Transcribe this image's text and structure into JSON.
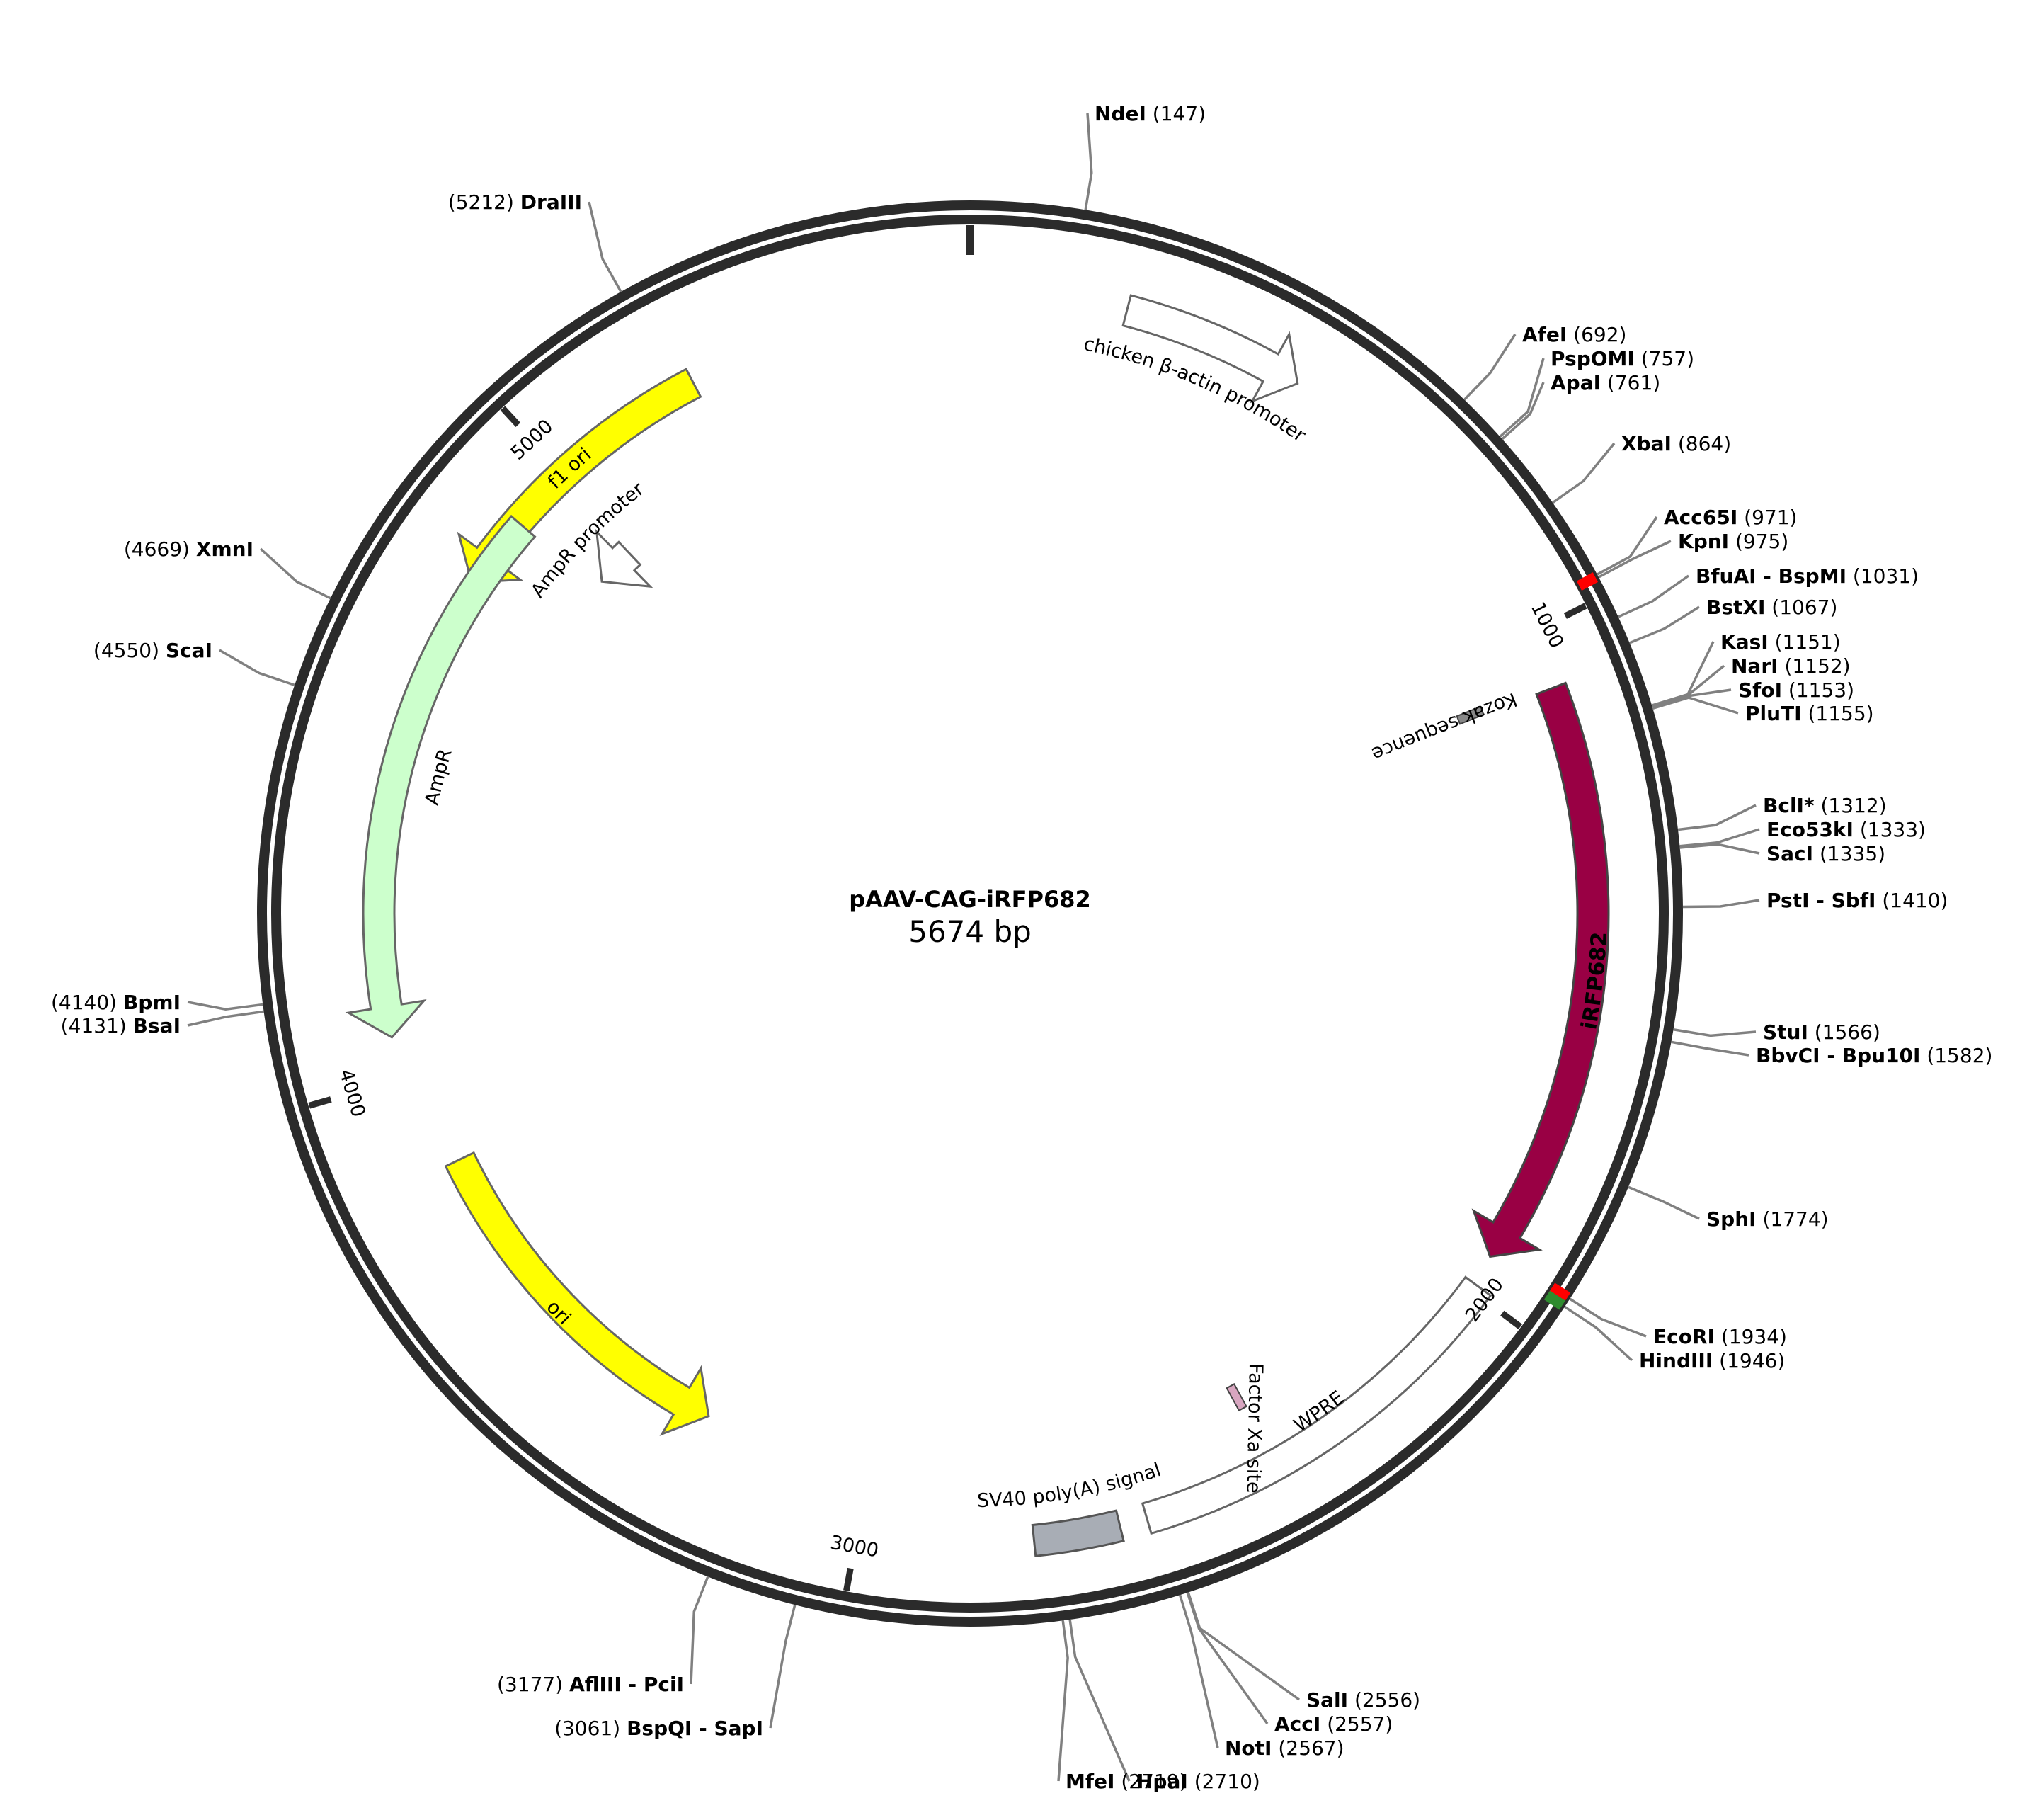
{
  "plasmid": {
    "name": "pAAV-CAG-iRFP682",
    "length": 5674,
    "length_label": "5674 bp"
  },
  "ticks": [
    {
      "pos": 1000,
      "label": "1000"
    },
    {
      "pos": 2000,
      "label": "2000"
    },
    {
      "pos": 3000,
      "label": "3000"
    },
    {
      "pos": 4000,
      "label": "4000"
    },
    {
      "pos": 5000,
      "label": "5000"
    }
  ],
  "features": [
    {
      "name": "f1 ori",
      "label": "f1 ori",
      "start": 4785,
      "end": 5240,
      "dir": "reverse",
      "color": "#ffff00",
      "stroke": "#666666",
      "label_color": "#000000"
    },
    {
      "name": "AmpR promoter",
      "label": "AmpR promoter",
      "start": 4918,
      "end": 4990,
      "dir": "reverse",
      "color": "#ffffff",
      "stroke": "#666666",
      "label_color": "#000000"
    },
    {
      "name": "AmpR",
      "label": "AmpR",
      "start": 4065,
      "end": 4900,
      "dir": "reverse",
      "color": "#ccffcc",
      "stroke": "#666666",
      "label_color": "#000000"
    },
    {
      "name": "ori",
      "label": "ori",
      "start": 3270,
      "end": 3850,
      "dir": "reverse",
      "color": "#ffff00",
      "stroke": "#666666",
      "label_color": "#000000"
    },
    {
      "name": "chicken beta-actin promoter",
      "label": "chicken β-actin promoter",
      "start": 230,
      "end": 500,
      "dir": "forward",
      "color": "#ffffff",
      "stroke": "#666666",
      "label_color": "#000000"
    },
    {
      "name": "iRFP682",
      "label": "iRFP682",
      "start": 1085,
      "end": 1945,
      "dir": "forward",
      "color": "#990044",
      "stroke": "#444444",
      "label_color": "#ffffff"
    },
    {
      "name": "WPRE",
      "label": "WPRE",
      "start": 1990,
      "end": 2580,
      "dir": "none",
      "color": "#ffffff",
      "stroke": "#666666",
      "label_color": "#000000"
    },
    {
      "name": "SV40 poly(A) signal",
      "label": "SV40 poly(A) signal",
      "start": 2620,
      "end": 2745,
      "dir": "none",
      "color": "#a8adb5",
      "stroke": "#555555",
      "label_color": "#000000"
    }
  ],
  "small_features": [
    {
      "name": "Kozak sequence",
      "label": "Kozak sequence",
      "pos": 1078
    },
    {
      "name": "Factor Xa site",
      "label": "Factor Xa site",
      "pos": 2382
    }
  ],
  "sites": [
    {
      "enzyme": "NdeI",
      "pos": "147"
    },
    {
      "enzyme": "AfeI",
      "pos": "692"
    },
    {
      "enzyme": "PspOMI",
      "pos": "757"
    },
    {
      "enzyme": "ApaI",
      "pos": "761"
    },
    {
      "enzyme": "XbaI",
      "pos": "864"
    },
    {
      "enzyme": "Acc65I",
      "pos": "971"
    },
    {
      "enzyme": "KpnI",
      "pos": "975"
    },
    {
      "enzyme": "BfuAI - BspMI",
      "pos": "1031"
    },
    {
      "enzyme": "BstXI",
      "pos": "1067"
    },
    {
      "enzyme": "KasI",
      "pos": "1151"
    },
    {
      "enzyme": "NarI",
      "pos": "1152"
    },
    {
      "enzyme": "SfoI",
      "pos": "1153"
    },
    {
      "enzyme": "PluTI",
      "pos": "1155"
    },
    {
      "enzyme": "BclI*",
      "pos": "1312"
    },
    {
      "enzyme": "Eco53kI",
      "pos": "1333"
    },
    {
      "enzyme": "SacI",
      "pos": "1335"
    },
    {
      "enzyme": "PstI - SbfI",
      "pos": "1410"
    },
    {
      "enzyme": "StuI",
      "pos": "1566"
    },
    {
      "enzyme": "BbvCI - Bpu10I",
      "pos": "1582"
    },
    {
      "enzyme": "SphI",
      "pos": "1774"
    },
    {
      "enzyme": "EcoRI",
      "pos": "1934"
    },
    {
      "enzyme": "HindIII",
      "pos": "1946"
    },
    {
      "enzyme": "SalI",
      "pos": "2556"
    },
    {
      "enzyme": "AccI",
      "pos": "2557"
    },
    {
      "enzyme": "NotI",
      "pos": "2567"
    },
    {
      "enzyme": "HpaI",
      "pos": "2710"
    },
    {
      "enzyme": "MfeI",
      "pos": "2719"
    },
    {
      "enzyme": "BspQI - SapI",
      "pos": "3061"
    },
    {
      "enzyme": "AflIII - PciI",
      "pos": "3177"
    },
    {
      "enzyme": "BsaI",
      "pos": "4131"
    },
    {
      "enzyme": "BpmI",
      "pos": "4140"
    },
    {
      "enzyme": "ScaI",
      "pos": "4550"
    },
    {
      "enzyme": "XmnI",
      "pos": "4669"
    },
    {
      "enzyme": "DraIII",
      "pos": "5212"
    }
  ],
  "highlights": [
    {
      "pos": 973,
      "color": "#ff0000"
    },
    {
      "pos": 1934,
      "color": "#ff0000"
    },
    {
      "pos": 1946,
      "color": "#2e8b2e"
    }
  ]
}
